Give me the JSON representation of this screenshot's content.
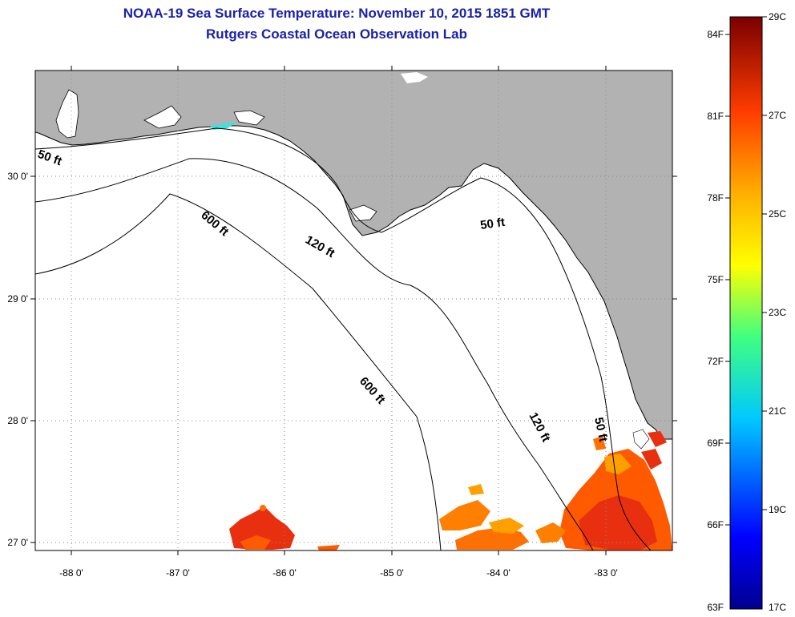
{
  "title": {
    "line1": "NOAA-19 Sea Surface Temperature:  November 10, 2015 1851 GMT",
    "line2": "Rutgers Coastal Ocean Observation Lab"
  },
  "axes": {
    "x_ticks": [
      "-88 0'",
      "-87 0'",
      "-86 0'",
      "-85 0'",
      "-84 0'",
      "-83 0'"
    ],
    "y_ticks": [
      "30 0'",
      "29 0'",
      "28 0'",
      "27 0'"
    ]
  },
  "contours": {
    "c50a": "50 ft",
    "c50b": "50 ft",
    "c50c": "50 ft",
    "c120a": "120 ft",
    "c120b": "120 ft",
    "c600a": "600 ft",
    "c600b": "600 ft"
  },
  "colorbar": {
    "fahrenheit": [
      "84F",
      "81F",
      "78F",
      "75F",
      "72F",
      "69F",
      "66F",
      "63F"
    ],
    "celsius": [
      "29C",
      "27C",
      "25C",
      "23C",
      "21C",
      "19C",
      "17C"
    ]
  },
  "colors": {
    "land": "#b2b2b2",
    "ocean": "#ffffff",
    "title": "#1a22a8",
    "sst_warm": "#ff5a00",
    "sst_hot": "#e83010",
    "sst_mid": "#ffa000"
  }
}
